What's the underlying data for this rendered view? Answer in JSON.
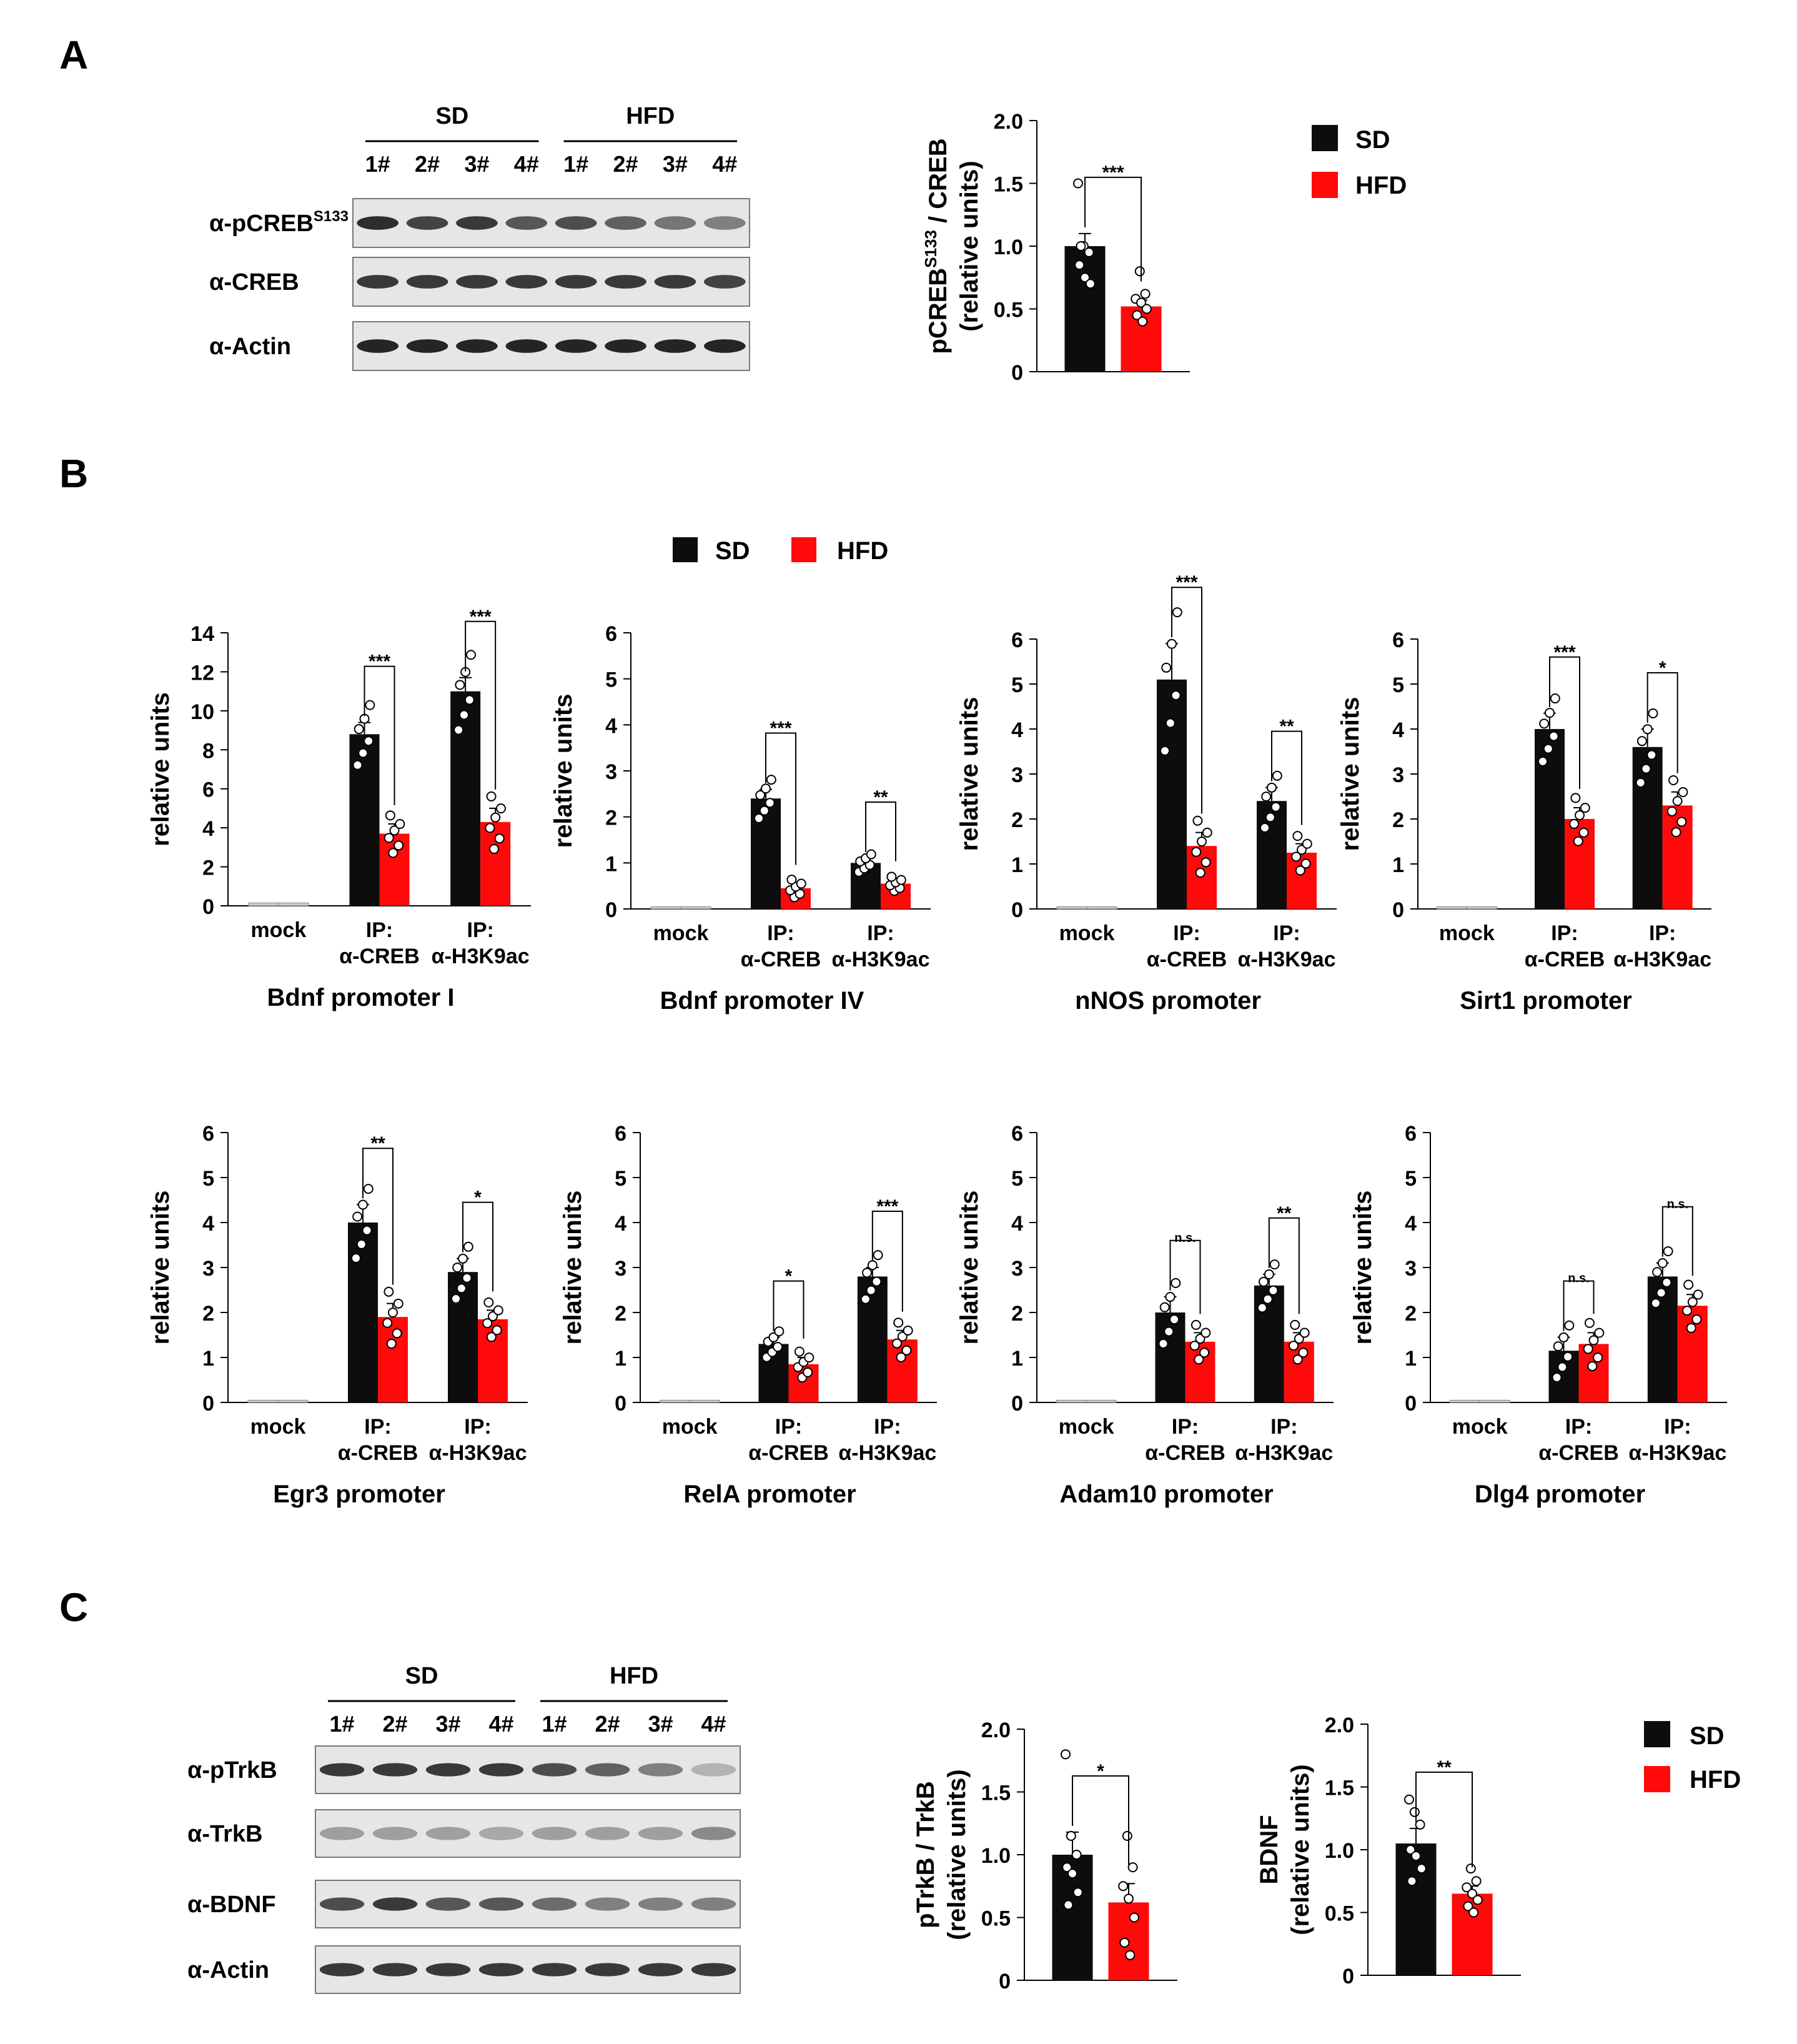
{
  "panels": {
    "a": "A",
    "b": "B",
    "c": "C"
  },
  "colors": {
    "sd": "#0d0d0d",
    "hfd": "#ff0a0a"
  },
  "legend": {
    "sd": "SD",
    "hfd": "HFD"
  },
  "blotA": {
    "groups": [
      "SD",
      "HFD"
    ],
    "lanes": [
      "1#",
      "2#",
      "3#",
      "4#",
      "1#",
      "2#",
      "3#",
      "4#"
    ],
    "rows": [
      {
        "label": "α-pCREB",
        "sup": "S133"
      },
      {
        "label": "α-CREB",
        "sup": ""
      },
      {
        "label": "α-Actin",
        "sup": ""
      }
    ]
  },
  "blotC": {
    "groups": [
      "SD",
      "HFD"
    ],
    "lanes": [
      "1#",
      "2#",
      "3#",
      "4#",
      "1#",
      "2#",
      "3#",
      "4#"
    ],
    "rows": [
      {
        "label": "α-pTrkB",
        "sup": ""
      },
      {
        "label": "α-TrkB",
        "sup": ""
      },
      {
        "label": "α-BDNF",
        "sup": ""
      },
      {
        "label": "α-Actin",
        "sup": ""
      }
    ]
  },
  "chart_data": [
    {
      "id": "a_pcreb",
      "type": "bar",
      "title": "",
      "ylabel_main": "pCREB",
      "ylabel_sup": "S133",
      "ylabel_rest": " / CREB",
      "ylabel2": "(relative units)",
      "ylim": [
        0,
        2.0
      ],
      "yticks": [
        "0",
        "0.5",
        "1.0",
        "1.5",
        "2.0"
      ],
      "categories": [
        ""
      ],
      "series": [
        {
          "name": "SD",
          "values": [
            1.0
          ],
          "err": [
            0.1
          ]
        },
        {
          "name": "HFD",
          "values": [
            0.52
          ],
          "err": [
            0.05
          ]
        }
      ],
      "points": [
        [
          1.5,
          1.0,
          0.95,
          0.85,
          0.75,
          0.7,
          1.0
        ],
        [
          0.8,
          0.62,
          0.58,
          0.55,
          0.5,
          0.45,
          0.4
        ]
      ],
      "sig": [
        "***"
      ]
    },
    {
      "id": "b_bdnf1",
      "type": "bar",
      "title": "Bdnf promoter I",
      "ylabel": "relative units",
      "ylim": [
        0,
        14
      ],
      "yticks": [
        "0",
        "2",
        "4",
        "6",
        "8",
        "10",
        "12",
        "14"
      ],
      "categories": [
        [
          "mock",
          ""
        ],
        [
          "IP:",
          "α-CREB"
        ],
        [
          "IP:",
          "α-H3K9ac"
        ]
      ],
      "series": [
        {
          "name": "SD",
          "values": [
            0.15,
            8.8,
            11.0
          ],
          "err": [
            0.05,
            0.6,
            0.7
          ]
        },
        {
          "name": "HFD",
          "values": [
            0.15,
            3.7,
            4.3
          ],
          "err": [
            0.05,
            0.5,
            0.7
          ]
        }
      ],
      "sig": [
        "",
        "***",
        "***"
      ]
    },
    {
      "id": "b_bdnf4",
      "type": "bar",
      "title": "Bdnf promoter IV",
      "ylabel": "relative units",
      "ylim": [
        0,
        6
      ],
      "yticks": [
        "0",
        "1",
        "2",
        "3",
        "4",
        "5",
        "6"
      ],
      "categories": [
        [
          "mock",
          ""
        ],
        [
          "IP:",
          "α-CREB"
        ],
        [
          "IP:",
          "α-H3K9ac"
        ]
      ],
      "series": [
        {
          "name": "SD",
          "values": [
            0.05,
            2.4,
            1.0
          ],
          "err": [
            0.02,
            0.2,
            0.1
          ]
        },
        {
          "name": "HFD",
          "values": [
            0.05,
            0.45,
            0.55
          ],
          "err": [
            0.02,
            0.1,
            0.08
          ]
        }
      ],
      "sig": [
        "",
        "***",
        "**"
      ]
    },
    {
      "id": "b_nnos",
      "type": "bar",
      "title": "nNOS promoter",
      "ylabel": "relative units",
      "ylim": [
        0,
        6
      ],
      "yticks": [
        "0",
        "1",
        "2",
        "3",
        "4",
        "5",
        "6"
      ],
      "categories": [
        [
          "mock",
          ""
        ],
        [
          "IP:",
          "α-CREB"
        ],
        [
          "IP:",
          "α-H3K9ac"
        ]
      ],
      "series": [
        {
          "name": "SD",
          "values": [
            0.05,
            5.1,
            2.4
          ],
          "err": [
            0.02,
            0.8,
            0.3
          ]
        },
        {
          "name": "HFD",
          "values": [
            0.05,
            1.4,
            1.25
          ],
          "err": [
            0.02,
            0.3,
            0.2
          ]
        }
      ],
      "sig": [
        "",
        "***",
        "**"
      ]
    },
    {
      "id": "b_sirt1",
      "type": "bar",
      "title": "Sirt1 promoter",
      "ylabel": "relative units",
      "ylim": [
        0,
        6
      ],
      "yticks": [
        "0",
        "1",
        "2",
        "3",
        "4",
        "5",
        "6"
      ],
      "categories": [
        [
          "mock",
          ""
        ],
        [
          "IP:",
          "α-CREB"
        ],
        [
          "IP:",
          "α-H3K9ac"
        ]
      ],
      "series": [
        {
          "name": "SD",
          "values": [
            0.05,
            4.0,
            3.6
          ],
          "err": [
            0.02,
            0.35,
            0.4
          ]
        },
        {
          "name": "HFD",
          "values": [
            0.05,
            2.0,
            2.3
          ],
          "err": [
            0.02,
            0.25,
            0.3
          ]
        }
      ],
      "sig": [
        "",
        "***",
        "*"
      ]
    },
    {
      "id": "b_egr3",
      "type": "bar",
      "title": "Egr3 promoter",
      "ylabel": "relative units",
      "ylim": [
        0,
        6
      ],
      "yticks": [
        "0",
        "1",
        "2",
        "3",
        "4",
        "5",
        "6"
      ],
      "categories": [
        [
          "mock",
          ""
        ],
        [
          "IP:",
          "α-CREB"
        ],
        [
          "IP:",
          "α-H3K9ac"
        ]
      ],
      "series": [
        {
          "name": "SD",
          "values": [
            0.05,
            4.0,
            2.9
          ],
          "err": [
            0.02,
            0.4,
            0.3
          ]
        },
        {
          "name": "HFD",
          "values": [
            0.05,
            1.9,
            1.85
          ],
          "err": [
            0.02,
            0.3,
            0.2
          ]
        }
      ],
      "sig": [
        "",
        "**",
        "*"
      ]
    },
    {
      "id": "b_rela",
      "type": "bar",
      "title": "RelA promoter",
      "ylabel": "relative units",
      "ylim": [
        0,
        6
      ],
      "yticks": [
        "0",
        "1",
        "2",
        "3",
        "4",
        "5",
        "6"
      ],
      "categories": [
        [
          "mock",
          ""
        ],
        [
          "IP:",
          "α-CREB"
        ],
        [
          "IP:",
          "α-H3K9ac"
        ]
      ],
      "series": [
        {
          "name": "SD",
          "values": [
            0.05,
            1.3,
            2.8
          ],
          "err": [
            0.02,
            0.15,
            0.2
          ]
        },
        {
          "name": "HFD",
          "values": [
            0.05,
            0.85,
            1.4
          ],
          "err": [
            0.02,
            0.15,
            0.2
          ]
        }
      ],
      "sig": [
        "",
        "*",
        "***"
      ]
    },
    {
      "id": "b_adam10",
      "type": "bar",
      "title": "Adam10 promoter",
      "ylabel": "relative units",
      "ylim": [
        0,
        6
      ],
      "yticks": [
        "0",
        "1",
        "2",
        "3",
        "4",
        "5",
        "6"
      ],
      "categories": [
        [
          "mock",
          ""
        ],
        [
          "IP:",
          "α-CREB"
        ],
        [
          "IP:",
          "α-H3K9ac"
        ]
      ],
      "series": [
        {
          "name": "SD",
          "values": [
            0.05,
            2.0,
            2.6
          ],
          "err": [
            0.02,
            0.35,
            0.25
          ]
        },
        {
          "name": "HFD",
          "values": [
            0.05,
            1.35,
            1.35
          ],
          "err": [
            0.02,
            0.2,
            0.2
          ]
        }
      ],
      "sig": [
        "",
        "n.s.",
        "**"
      ]
    },
    {
      "id": "b_dlg4",
      "type": "bar",
      "title": "Dlg4 promoter",
      "ylabel": "relative units",
      "ylim": [
        0,
        6
      ],
      "yticks": [
        "0",
        "1",
        "2",
        "3",
        "4",
        "5",
        "6"
      ],
      "categories": [
        [
          "mock",
          ""
        ],
        [
          "IP:",
          "α-CREB"
        ],
        [
          "IP:",
          "α-H3K9ac"
        ]
      ],
      "series": [
        {
          "name": "SD",
          "values": [
            0.05,
            1.15,
            2.8
          ],
          "err": [
            0.02,
            0.3,
            0.3
          ]
        },
        {
          "name": "HFD",
          "values": [
            0.05,
            1.3,
            2.15
          ],
          "err": [
            0.02,
            0.25,
            0.25
          ]
        }
      ],
      "sig": [
        "",
        "n.s.",
        "n.s."
      ]
    },
    {
      "id": "c_ptrkb",
      "type": "bar",
      "title": "",
      "ylabel": "pTrkB / TrkB",
      "ylabel2": "(relative units)",
      "ylim": [
        0,
        2.0
      ],
      "yticks": [
        "0",
        "0.5",
        "1.0",
        "1.5",
        "2.0"
      ],
      "categories": [
        ""
      ],
      "series": [
        {
          "name": "SD",
          "values": [
            1.0
          ],
          "err": [
            0.18
          ]
        },
        {
          "name": "HFD",
          "values": [
            0.62
          ],
          "err": [
            0.15
          ]
        }
      ],
      "points": [
        [
          1.8,
          1.15,
          1.0,
          0.9,
          0.85,
          0.7,
          0.6
        ],
        [
          1.15,
          0.9,
          0.75,
          0.65,
          0.5,
          0.3,
          0.2
        ]
      ],
      "sig": [
        "*"
      ]
    },
    {
      "id": "c_bdnf",
      "type": "bar",
      "title": "",
      "ylabel": "BDNF",
      "ylabel2": "(relative units)",
      "ylim": [
        0,
        2.0
      ],
      "yticks": [
        "0",
        "0.5",
        "1.0",
        "1.5",
        "2.0"
      ],
      "categories": [
        ""
      ],
      "series": [
        {
          "name": "SD",
          "values": [
            1.05
          ],
          "err": [
            0.12
          ]
        },
        {
          "name": "HFD",
          "values": [
            0.65
          ],
          "err": [
            0.06
          ]
        }
      ],
      "points": [
        [
          1.4,
          1.3,
          1.2,
          1.0,
          0.95,
          0.85,
          0.75
        ],
        [
          0.85,
          0.75,
          0.7,
          0.65,
          0.6,
          0.55,
          0.5
        ]
      ],
      "sig": [
        "**"
      ]
    }
  ]
}
